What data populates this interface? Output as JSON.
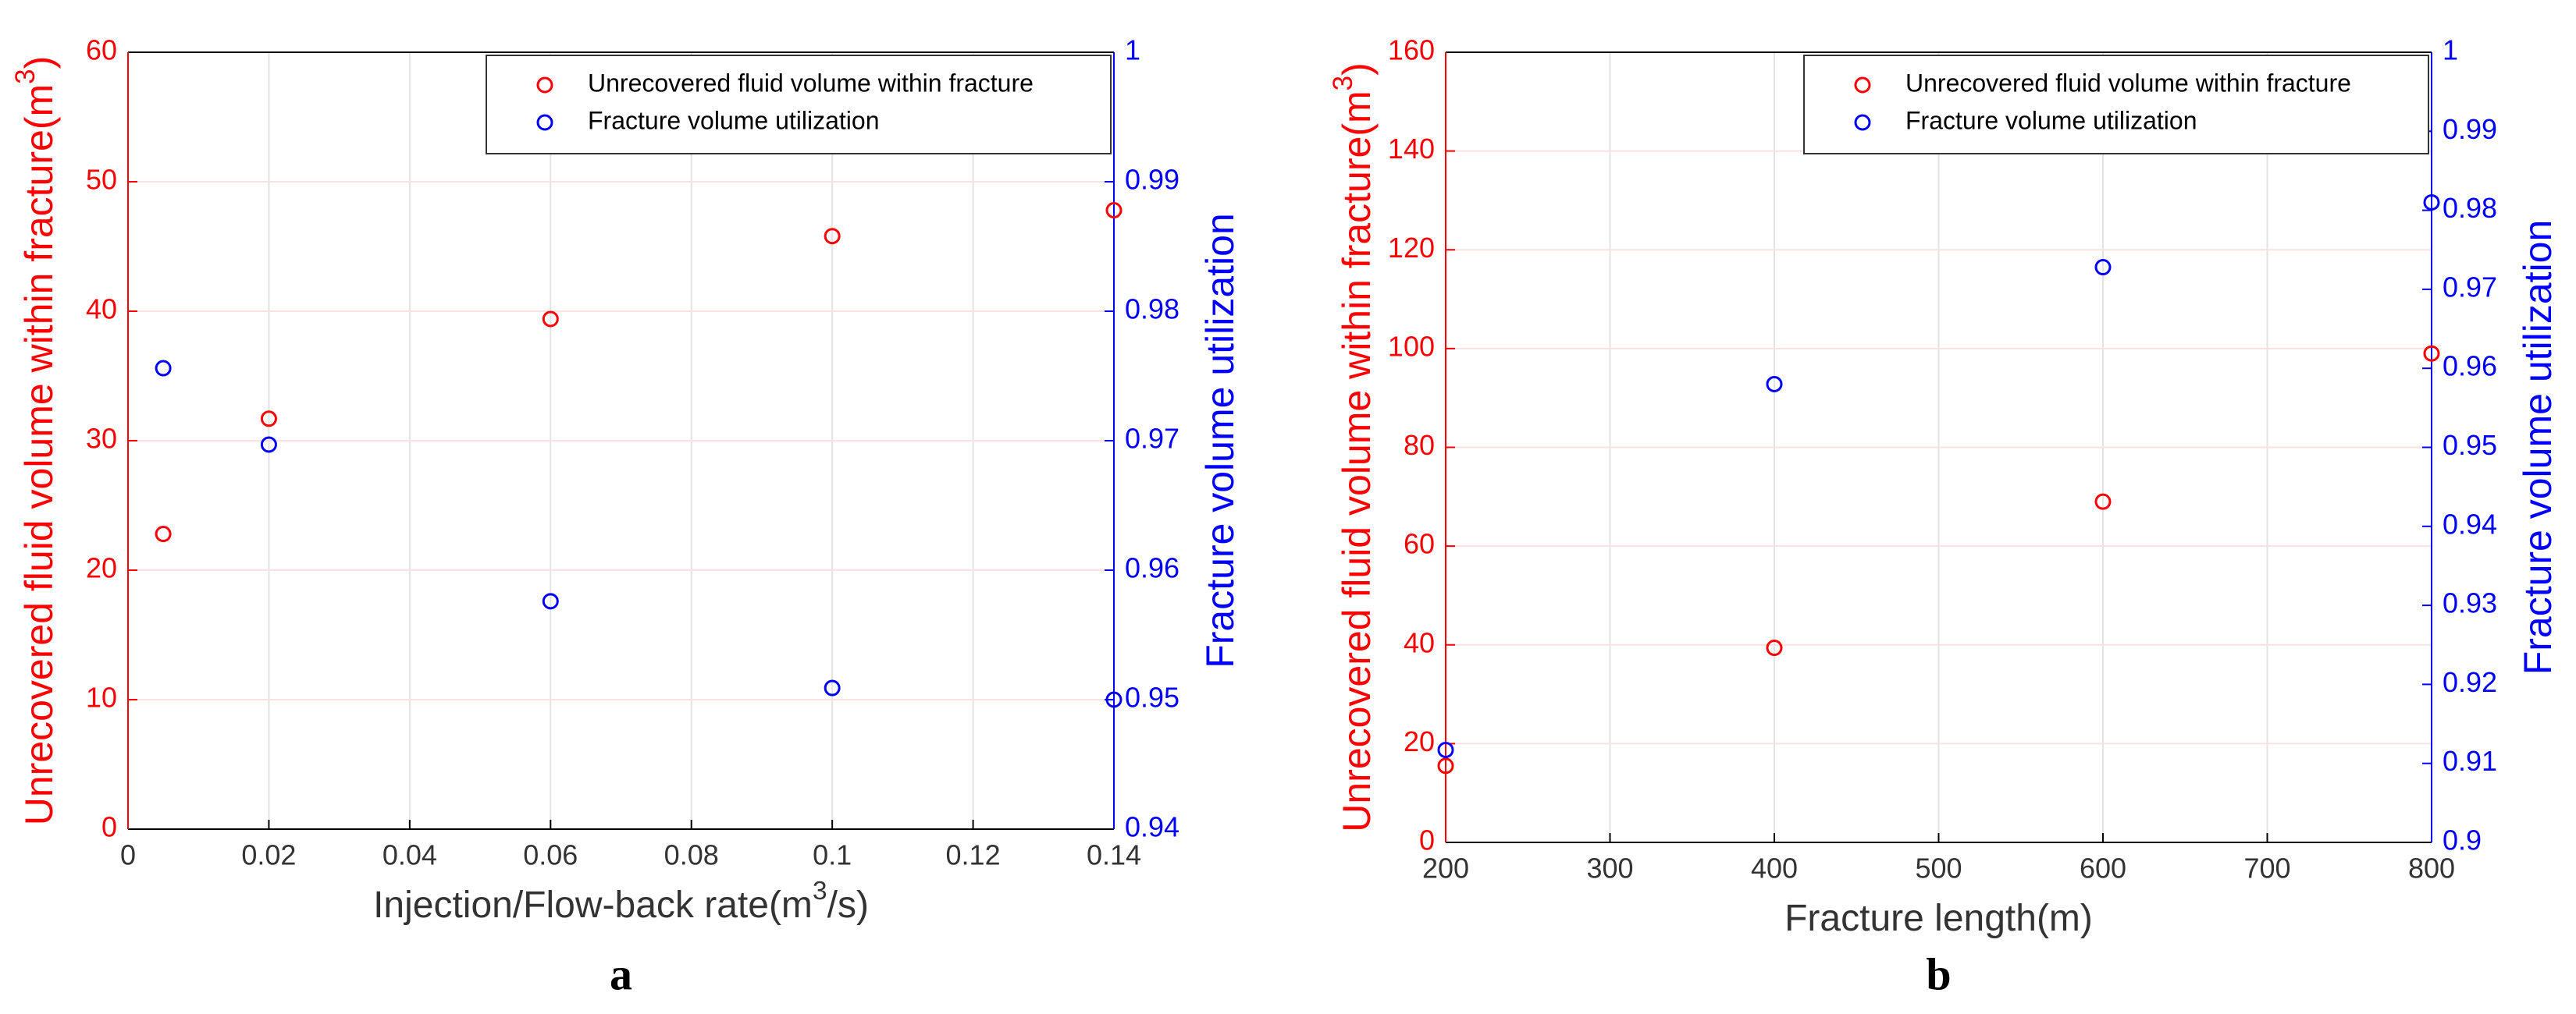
{
  "chart_data": [
    {
      "type": "scatter",
      "label": "a",
      "xlabel": [
        "Injection/Flow-back rate(m",
        "3",
        "/s)"
      ],
      "ylabel": [
        "Unrecovered fluid volume within fracture(m",
        "3",
        ")"
      ],
      "y2label": "Fracture volume utilization",
      "x": [
        0.005,
        0.02,
        0.06,
        0.1,
        0.14
      ],
      "xlim": [
        0,
        0.14
      ],
      "xticks": [
        0,
        0.02,
        0.04,
        0.06,
        0.08,
        0.1,
        0.12,
        0.14
      ],
      "ylim": [
        0,
        60
      ],
      "yticks": [
        0,
        10,
        20,
        30,
        40,
        50,
        60
      ],
      "y2lim": [
        0.94,
        1
      ],
      "y2ticks": [
        0.94,
        0.95,
        0.96,
        0.97,
        0.98,
        0.99,
        1
      ],
      "grid": true,
      "legend": "top-right",
      "series": [
        {
          "name": "Unrecovered fluid volume within fracture",
          "color": "#ff0000",
          "values": [
            22.8,
            31.7,
            39.4,
            45.8,
            47.8
          ]
        },
        {
          "name": "Fracture volume utilization",
          "color": "#0000ff",
          "axis": "y2",
          "values": [
            0.9756,
            0.9697,
            0.9576,
            0.9509,
            0.95
          ]
        }
      ]
    },
    {
      "type": "scatter",
      "label": "b",
      "xlabel": [
        "Fracture length(m)"
      ],
      "ylabel": [
        "Unrecovered fluid volume within fracture(m",
        "3",
        ")"
      ],
      "y2label": "Fracture volume utilization",
      "x": [
        200,
        400,
        600,
        800
      ],
      "xlim": [
        200,
        800
      ],
      "xticks": [
        200,
        300,
        400,
        500,
        600,
        700,
        800
      ],
      "ylim": [
        0,
        160
      ],
      "yticks": [
        0,
        20,
        40,
        60,
        80,
        100,
        120,
        140,
        160
      ],
      "y2lim": [
        0.9,
        1
      ],
      "y2ticks": [
        0.9,
        0.91,
        0.92,
        0.93,
        0.94,
        0.95,
        0.96,
        0.97,
        0.98,
        0.99,
        1
      ],
      "grid": true,
      "legend": "top-right",
      "series": [
        {
          "name": "Unrecovered fluid volume within fracture",
          "color": "#ff0000",
          "values": [
            15.5,
            39.4,
            69,
            99
          ]
        },
        {
          "name": "Fracture volume utilization",
          "color": "#0000ff",
          "axis": "y2",
          "values": [
            0.9117,
            0.958,
            0.9728,
            0.981
          ]
        }
      ]
    }
  ]
}
